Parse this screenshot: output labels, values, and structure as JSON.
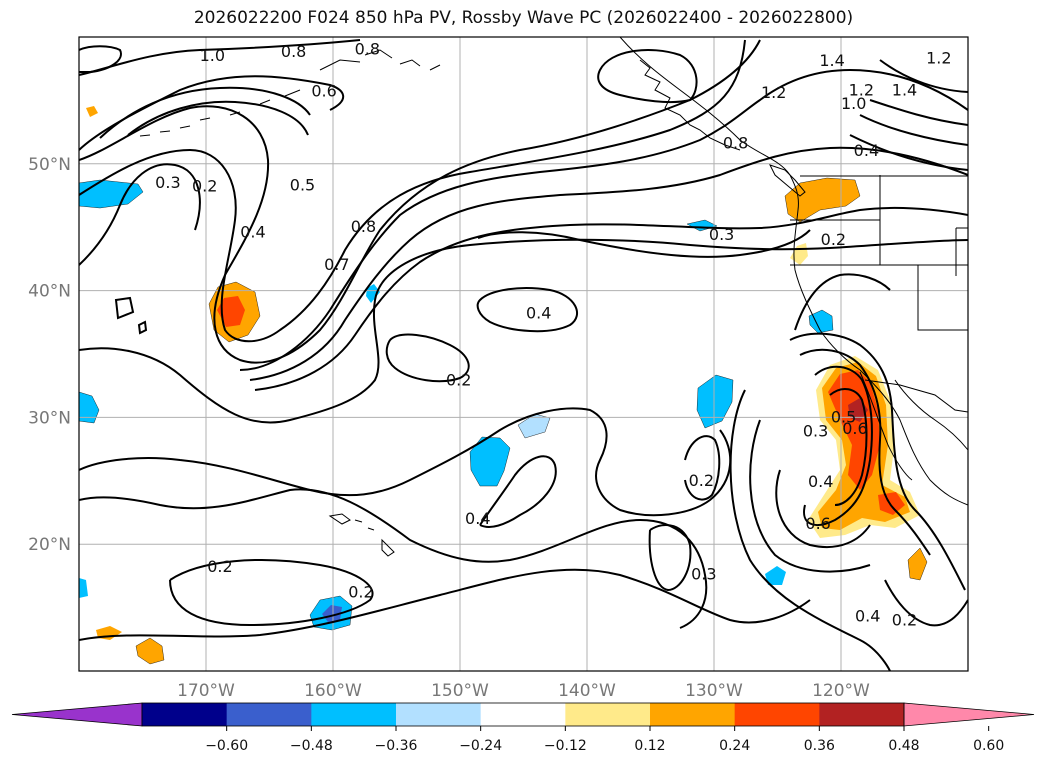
{
  "title": "2026022200 F024 850 hPa PV, Rossby Wave PC (2026022400 - 2026022800)",
  "colors": {
    "frame": "#000000",
    "grid": "#b0b0b0",
    "contour": "#000000",
    "coast": "#000000",
    "axis_label": "#777777"
  },
  "map": {
    "projection": "lat-lon",
    "lon_range": [
      -180,
      -110
    ],
    "lat_range": [
      10,
      60
    ],
    "grid": true
  },
  "axes": {
    "lat_labels": [
      {
        "lat": 50,
        "label": "50°N"
      },
      {
        "lat": 40,
        "label": "40°N"
      },
      {
        "lat": 30,
        "label": "30°N"
      },
      {
        "lat": 20,
        "label": "20°N"
      }
    ],
    "lon_labels": [
      {
        "lon": -170,
        "label": "170°W"
      },
      {
        "lon": -160,
        "label": "160°W"
      },
      {
        "lon": -150,
        "label": "150°W"
      },
      {
        "lon": -140,
        "label": "140°W"
      },
      {
        "lon": -130,
        "label": "130°W"
      },
      {
        "lon": -120,
        "label": "120°W"
      }
    ]
  },
  "colorbar": {
    "extend": "both",
    "colors": [
      "#9933cc",
      "#00008b",
      "#3a5fcd",
      "#00bfff",
      "#b2e0ff",
      "#ffffff",
      "#ffea8a",
      "#ffa500",
      "#ff4500",
      "#b22222",
      "#ff88aa"
    ],
    "ticks": [
      "−0.60",
      "−0.48",
      "−0.36",
      "−0.24",
      "−0.12",
      "0.12",
      "0.24",
      "0.36",
      "0.48",
      "0.60"
    ]
  },
  "contour_labels": [
    {
      "text": "1.0",
      "lon": -169.5,
      "lat": 58.5
    },
    {
      "text": "0.8",
      "lon": -163.1,
      "lat": 58.8
    },
    {
      "text": "0.8",
      "lon": -157.3,
      "lat": 59.0
    },
    {
      "text": "0.6",
      "lon": -160.7,
      "lat": 55.7
    },
    {
      "text": "1.2",
      "lon": -125.3,
      "lat": 55.6
    },
    {
      "text": "1.4",
      "lon": -120.7,
      "lat": 58.1
    },
    {
      "text": "1.2",
      "lon": -112.3,
      "lat": 58.3
    },
    {
      "text": "1.2",
      "lon": -118.4,
      "lat": 55.8
    },
    {
      "text": "1.0",
      "lon": -119.0,
      "lat": 54.7
    },
    {
      "text": "1.4",
      "lon": -115.0,
      "lat": 55.8
    },
    {
      "text": "0.8",
      "lon": -128.3,
      "lat": 51.6
    },
    {
      "text": "0.4",
      "lon": -118.0,
      "lat": 51.0
    },
    {
      "text": "0.3",
      "lon": -173.0,
      "lat": 48.5
    },
    {
      "text": "0.2",
      "lon": -170.1,
      "lat": 48.2
    },
    {
      "text": "0.5",
      "lon": -162.4,
      "lat": 48.3
    },
    {
      "text": "0.4",
      "lon": -166.3,
      "lat": 44.6
    },
    {
      "text": "0.8",
      "lon": -157.6,
      "lat": 45.0
    },
    {
      "text": "0.7",
      "lon": -159.7,
      "lat": 42.0
    },
    {
      "text": "0.3",
      "lon": -129.4,
      "lat": 44.4
    },
    {
      "text": "0.2",
      "lon": -120.6,
      "lat": 44.0
    },
    {
      "text": "0.4",
      "lon": -143.8,
      "lat": 38.2
    },
    {
      "text": "0.2",
      "lon": -150.1,
      "lat": 32.9
    },
    {
      "text": "0.3",
      "lon": -122.0,
      "lat": 28.9
    },
    {
      "text": "0.5",
      "lon": -119.8,
      "lat": 30.0
    },
    {
      "text": "0.6",
      "lon": -118.9,
      "lat": 29.1
    },
    {
      "text": "0.2",
      "lon": -131.0,
      "lat": 25.0
    },
    {
      "text": "0.4",
      "lon": -121.6,
      "lat": 24.9
    },
    {
      "text": "0.6",
      "lon": -121.8,
      "lat": 21.6
    },
    {
      "text": "0.4",
      "lon": -148.6,
      "lat": 22.0
    },
    {
      "text": "0.2",
      "lon": -168.9,
      "lat": 18.2
    },
    {
      "text": "0.3",
      "lon": -130.8,
      "lat": 17.6
    },
    {
      "text": "0.2",
      "lon": -157.8,
      "lat": 16.2
    },
    {
      "text": "0.4",
      "lon": -117.9,
      "lat": 14.3
    },
    {
      "text": "0.2",
      "lon": -115.0,
      "lat": 14.0
    }
  ]
}
